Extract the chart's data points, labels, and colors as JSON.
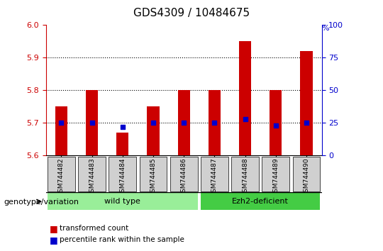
{
  "title": "GDS4309 / 10484675",
  "samples": [
    "GSM744482",
    "GSM744483",
    "GSM744484",
    "GSM744485",
    "GSM744486",
    "GSM744487",
    "GSM744488",
    "GSM744489",
    "GSM744490"
  ],
  "transformed_count": [
    5.75,
    5.8,
    5.67,
    5.75,
    5.8,
    5.8,
    5.95,
    5.8,
    5.92
  ],
  "percentile_rank": [
    25,
    25,
    22,
    25,
    25,
    25,
    28,
    23,
    25
  ],
  "ylim": [
    5.6,
    6.0
  ],
  "yticks": [
    5.6,
    5.7,
    5.8,
    5.9,
    6.0
  ],
  "right_ylim": [
    0,
    100
  ],
  "right_yticks": [
    0,
    25,
    50,
    75,
    100
  ],
  "bar_color": "#cc0000",
  "dot_color": "#0000cc",
  "bar_width": 0.4,
  "groups": [
    {
      "label": "wild type",
      "samples": [
        "GSM744482",
        "GSM744483",
        "GSM744484",
        "GSM744485",
        "GSM744486"
      ],
      "color": "#99ee99"
    },
    {
      "label": "Ezh2-deficient",
      "samples": [
        "GSM744487",
        "GSM744488",
        "GSM744489",
        "GSM744490"
      ],
      "color": "#44cc44"
    }
  ],
  "group_label": "genotype/variation",
  "legend_items": [
    {
      "color": "#cc0000",
      "label": "transformed count"
    },
    {
      "color": "#0000cc",
      "label": "percentile rank within the sample"
    }
  ],
  "xlabel_color": "#cc0000",
  "right_axis_color": "#0000cc",
  "background_plot": "#ffffff",
  "background_xticklabels": "#dddddd",
  "dotted_grid_color": "#000000"
}
